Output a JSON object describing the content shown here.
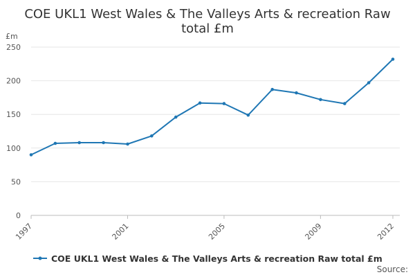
{
  "chart_data": {
    "type": "line",
    "title_lines": [
      "COE UKL1 West Wales & The Valleys Arts & recreation Raw",
      "total £m"
    ],
    "unit_label": "£m",
    "x": [
      1997,
      1998,
      1999,
      2000,
      2001,
      2002,
      2003,
      2004,
      2005,
      2006,
      2007,
      2008,
      2009,
      2010,
      2011,
      2012
    ],
    "x_tick_labels": [
      "1997",
      "2001",
      "2005",
      "2009",
      "2012"
    ],
    "y_ticks": [
      0,
      50,
      100,
      150,
      200,
      250
    ],
    "ylim": [
      0,
      250
    ],
    "series": [
      {
        "name": "COE UKL1 West Wales & The Valleys Arts & recreation Raw total £m",
        "color": "#1f77b4",
        "values": [
          90,
          107,
          108,
          108,
          106,
          118,
          146,
          167,
          166,
          149,
          187,
          182,
          172,
          166,
          197,
          232
        ]
      }
    ],
    "grid": true,
    "legend_position": "bottom",
    "source_label": "Source:"
  }
}
